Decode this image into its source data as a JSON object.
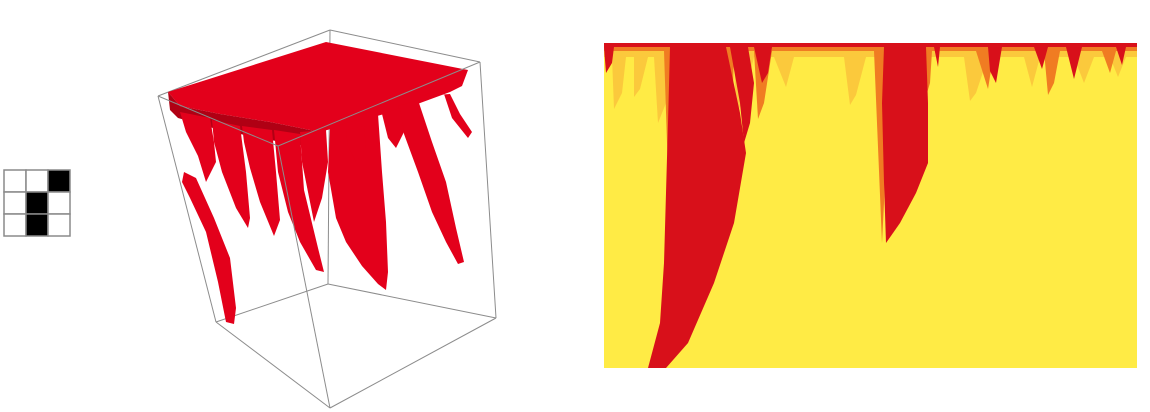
{
  "figure": {
    "rule_icon": {
      "name": "rule-template-3x3",
      "cells": [
        [
          0,
          0,
          1
        ],
        [
          0,
          1,
          0
        ],
        [
          0,
          1,
          0
        ]
      ],
      "on_color": "#000000",
      "off_color": "#ffffff",
      "grid_color": "#8a8a8a"
    },
    "voxel_view": {
      "name": "3d-voxel-evolution",
      "fill_color": "#e3001b",
      "shade_color": "#b00014",
      "edge_color": "#8c8c8c"
    },
    "density_map": {
      "name": "2d-density-evolution",
      "background_color": "#ffeb45",
      "high_color": "#d8101a",
      "mid_color": "#f07c22",
      "low_color": "#fbc93c"
    }
  }
}
